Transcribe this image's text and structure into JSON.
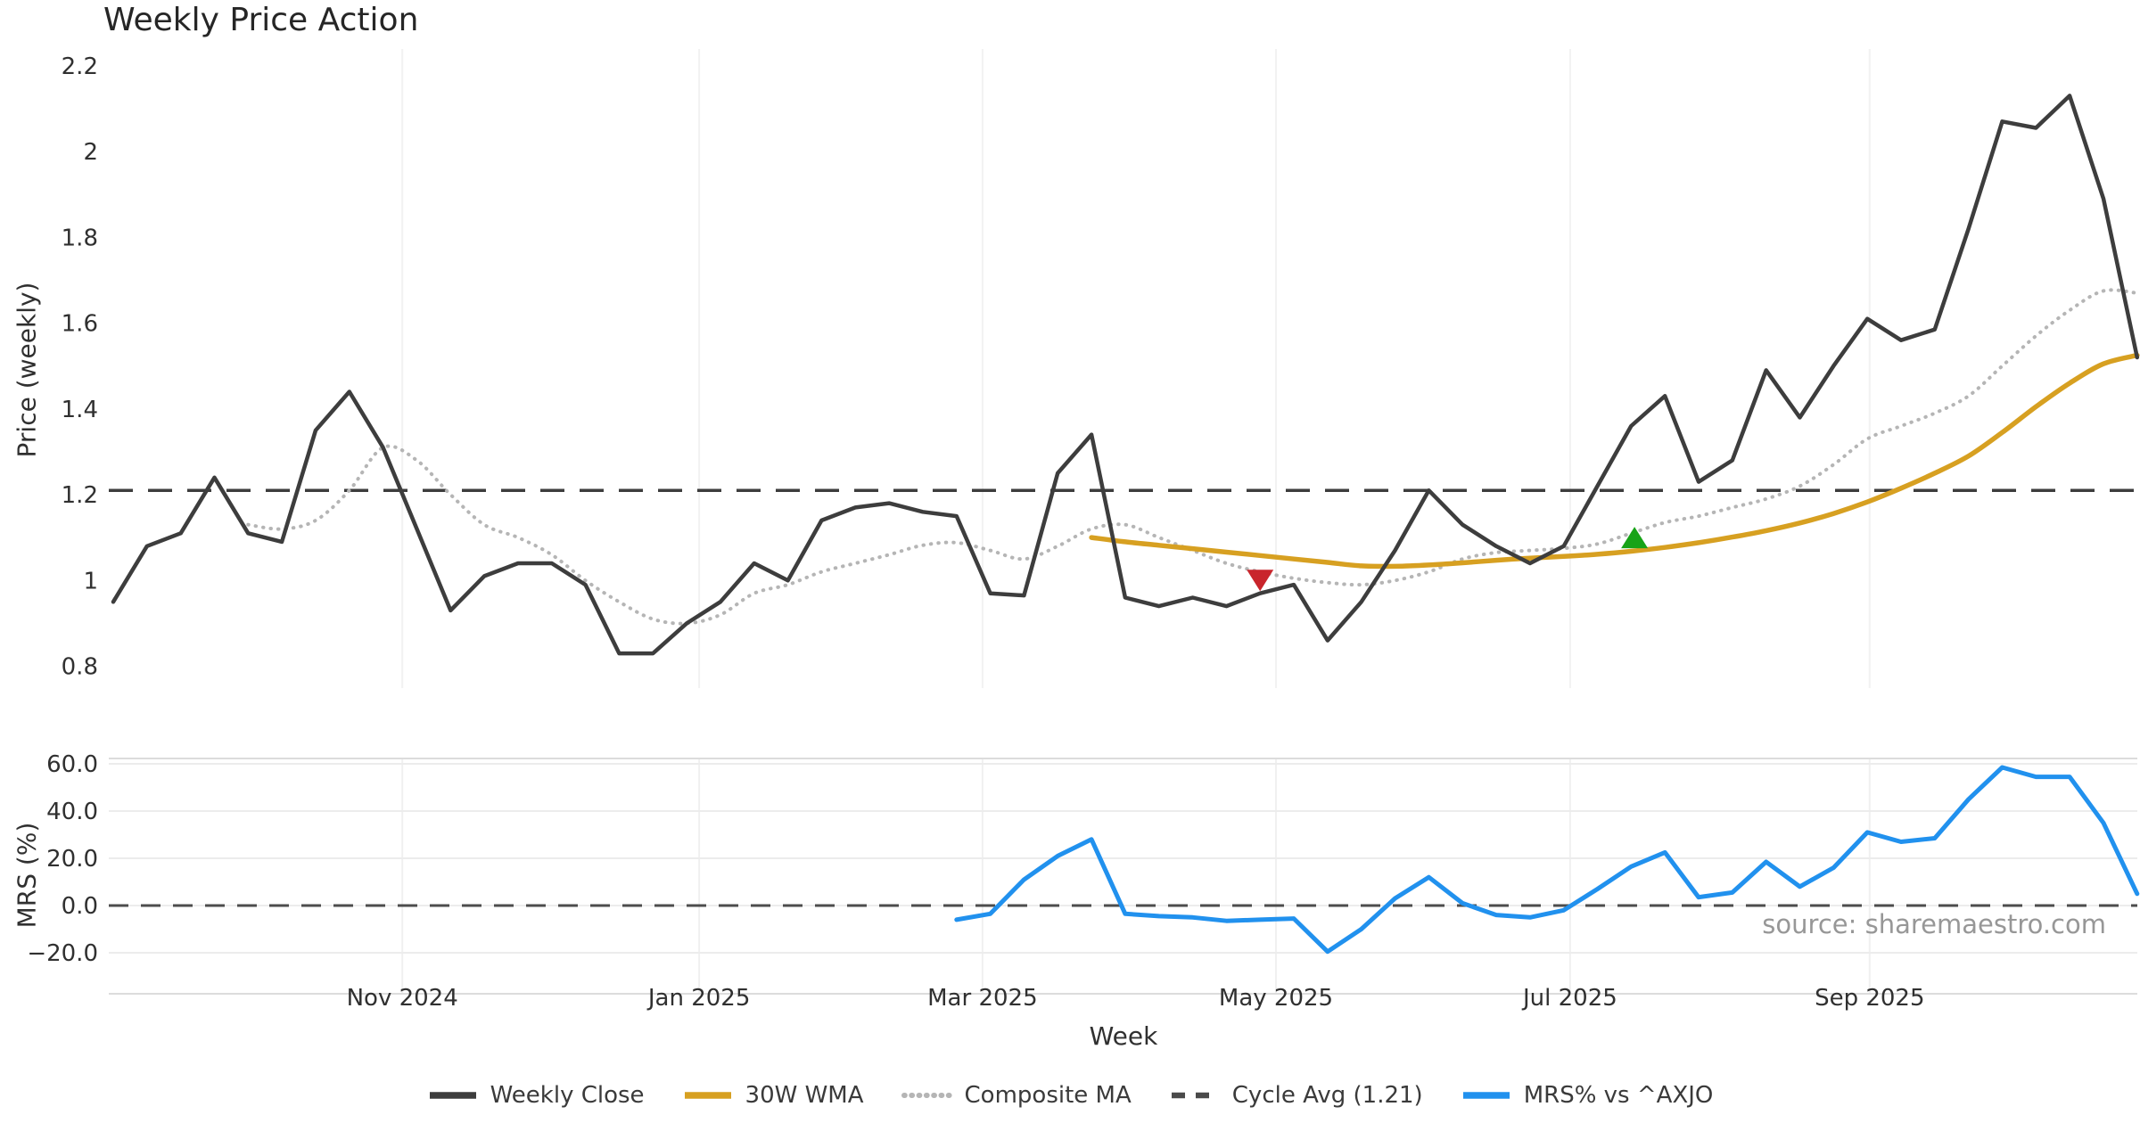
{
  "title": "Weekly Price Action",
  "source": "source: sharemaestro.com",
  "chart_data": {
    "type": "line",
    "title": "Weekly Price Action",
    "x_axis": {
      "label": "Week",
      "num_weeks": 61,
      "ticks": [
        {
          "pos": 8.57,
          "label": "Nov 2024"
        },
        {
          "pos": 17.37,
          "label": "Jan 2025"
        },
        {
          "pos": 25.77,
          "label": "Mar 2025"
        },
        {
          "pos": 34.47,
          "label": "May 2025"
        },
        {
          "pos": 43.19,
          "label": "Jul 2025"
        },
        {
          "pos": 52.07,
          "label": "Sep 2025"
        }
      ]
    },
    "panels": [
      {
        "name": "price",
        "ylabel": "Price (weekly)",
        "ylim": [
          0.72,
          2.24
        ],
        "yticks": [
          {
            "v": 0.8,
            "label": "0.8"
          },
          {
            "v": 1.0,
            "label": "1"
          },
          {
            "v": 1.2,
            "label": "1.2"
          },
          {
            "v": 1.4,
            "label": "1.4"
          },
          {
            "v": 1.6,
            "label": "1.6"
          },
          {
            "v": 1.8,
            "label": "1.8"
          },
          {
            "v": 2.0,
            "label": "2"
          },
          {
            "v": 2.2,
            "label": "2.2"
          }
        ],
        "hline": {
          "name": "cycle-average",
          "label": "Cycle Avg (1.21)",
          "value": 1.21,
          "color": "#3d3d3d",
          "style": "dashed",
          "width": 3.5
        },
        "series": [
          {
            "name": "Composite MA",
            "color": "#b5b5b5",
            "width": 4,
            "style": "dotted",
            "smooth": true,
            "start": 4,
            "values": [
              1.13,
              1.12,
              1.14,
              1.21,
              1.31,
              1.28,
              1.2,
              1.13,
              1.1,
              1.06,
              1.0,
              0.95,
              0.91,
              0.9,
              0.92,
              0.97,
              0.99,
              1.02,
              1.04,
              1.06,
              1.082,
              1.088,
              1.07,
              1.05,
              1.08,
              1.12,
              1.13,
              1.1,
              1.07,
              1.04,
              1.02,
              1.005,
              0.995,
              0.99,
              1.0,
              1.02,
              1.05,
              1.065,
              1.07,
              1.075,
              1.085,
              1.11,
              1.135,
              1.15,
              1.17,
              1.19,
              1.22,
              1.27,
              1.33,
              1.36,
              1.39,
              1.43,
              1.5,
              1.57,
              1.63,
              1.675,
              1.67
            ]
          },
          {
            "name": "30W WMA",
            "color": "#d7a021",
            "width": 5.5,
            "style": "solid",
            "smooth": true,
            "start": 29,
            "values": [
              1.1,
              1.09,
              1.082,
              1.074,
              1.066,
              1.058,
              1.05,
              1.042,
              1.034,
              1.033,
              1.036,
              1.041,
              1.047,
              1.052,
              1.056,
              1.061,
              1.068,
              1.077,
              1.088,
              1.101,
              1.116,
              1.134,
              1.156,
              1.183,
              1.215,
              1.25,
              1.29,
              1.345,
              1.405,
              1.46,
              1.505,
              1.525
            ]
          },
          {
            "name": "Weekly Close",
            "color": "#3d3d3d",
            "width": 4.5,
            "style": "solid",
            "smooth": false,
            "start": 0,
            "values": [
              0.95,
              1.08,
              1.11,
              1.24,
              1.11,
              1.09,
              1.35,
              1.44,
              1.31,
              1.12,
              0.93,
              1.01,
              1.04,
              1.04,
              0.99,
              0.83,
              0.83,
              0.9,
              0.95,
              1.04,
              1.0,
              1.14,
              1.17,
              1.18,
              1.16,
              1.15,
              0.97,
              0.965,
              1.25,
              1.34,
              0.96,
              0.94,
              0.96,
              0.94,
              0.97,
              0.99,
              0.86,
              0.95,
              1.07,
              1.21,
              1.13,
              1.08,
              1.04,
              1.08,
              1.22,
              1.36,
              1.43,
              1.23,
              1.28,
              1.49,
              1.38,
              1.5,
              1.61,
              1.56,
              1.585,
              1.82,
              2.07,
              2.055,
              2.13,
              1.89,
              1.52
            ]
          }
        ],
        "markers": [
          {
            "name": "sell-signal",
            "shape": "triangle-down",
            "color": "#c9252c",
            "x": 34.0,
            "y": 1.0
          },
          {
            "name": "buy-signal",
            "shape": "triangle-up",
            "color": "#17a317",
            "x": 45.1,
            "y": 1.1
          }
        ]
      },
      {
        "name": "mrs",
        "ylabel": "MRS (%)",
        "ylim": [
          -37,
          62
        ],
        "yticks": [
          {
            "v": -20,
            "label": "−20.0"
          },
          {
            "v": 0,
            "label": "0.0"
          },
          {
            "v": 20,
            "label": "20.0"
          },
          {
            "v": 40,
            "label": "40.0"
          },
          {
            "v": 60,
            "label": "60.0"
          }
        ],
        "grid_values": [
          -20,
          0,
          20,
          40,
          60
        ],
        "hline": {
          "name": "zero-line",
          "value": 0,
          "color": "#4d4d4d",
          "style": "dashed",
          "width": 3
        },
        "series": [
          {
            "name": "MRS% vs ^AXJO",
            "color": "#2191ee",
            "width": 5,
            "style": "solid",
            "smooth": false,
            "start": 25,
            "values": [
              -6,
              -3.5,
              11,
              21,
              28,
              -3.5,
              -4.5,
              -5,
              -6.5,
              -6,
              -5.5,
              -19.5,
              -10,
              3,
              12,
              1,
              -4,
              -5,
              -2,
              7,
              16.5,
              22.5,
              3.5,
              5.5,
              18.5,
              8,
              16,
              31,
              27,
              28.5,
              45,
              58.5,
              54.5,
              54.5,
              35,
              5
            ]
          }
        ]
      }
    ],
    "legend": [
      {
        "label": "Weekly Close",
        "swatch": "solid",
        "color": "#3d3d3d"
      },
      {
        "label": "30W WMA",
        "swatch": "solid",
        "color": "#d7a021"
      },
      {
        "label": "Composite MA",
        "swatch": "dotted",
        "color": "#b5b5b5"
      },
      {
        "label": "Cycle Avg (1.21)",
        "swatch": "dashed",
        "color": "#4a4a4a"
      },
      {
        "label": "MRS% vs ^AXJO",
        "swatch": "solid",
        "color": "#2191ee"
      }
    ]
  }
}
